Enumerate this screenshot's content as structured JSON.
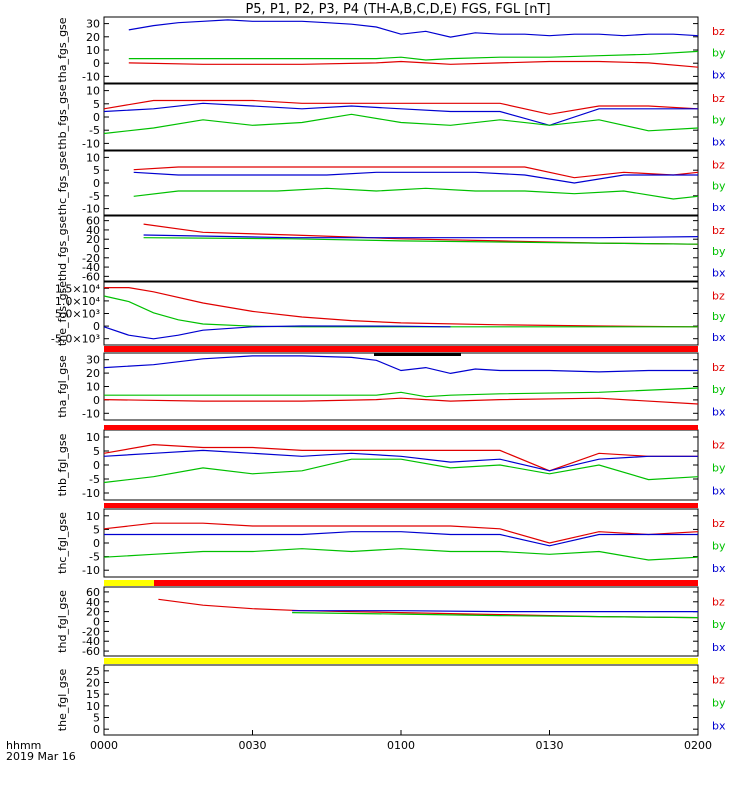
{
  "title": "P5, P1, P2, P3, P4 (TH-A,B,C,D,E) FGS, FGL [nT]",
  "footer": {
    "time_label": "hhmm",
    "date_label": "2019 Mar 16"
  },
  "x_axis": {
    "ticks": [
      "0000",
      "0030",
      "0100",
      "0130",
      "0200"
    ],
    "range_minutes": [
      0,
      120
    ]
  },
  "colors": {
    "bz": "#e00000",
    "by": "#00c000",
    "bx": "#0000d0",
    "flag_red": "#ff0000",
    "flag_yellow": "#ffff00",
    "flag_black": "#000000"
  },
  "chart_data": [
    {
      "type": "line",
      "ylabel": "tha_fgs_gse",
      "ylim": [
        -14,
        32
      ],
      "yticks": [
        "-10",
        "0",
        "10",
        "20",
        "30"
      ],
      "legend": [
        "bz",
        "by",
        "bx"
      ],
      "series": [
        {
          "name": "bx",
          "color": "#0000d0",
          "x": [
            5,
            10,
            15,
            20,
            25,
            30,
            35,
            40,
            45,
            50,
            55,
            60,
            65,
            70,
            75,
            80,
            85,
            90,
            95,
            100,
            105,
            110,
            115,
            120
          ],
          "y": [
            23,
            26,
            28,
            29,
            30,
            29,
            29,
            29,
            28,
            27,
            25,
            20,
            22,
            18,
            21,
            20,
            20,
            19,
            20,
            20,
            19,
            20,
            20,
            19
          ]
        },
        {
          "name": "by",
          "color": "#00c000",
          "x": [
            5,
            20,
            40,
            55,
            60,
            65,
            70,
            80,
            90,
            100,
            110,
            120
          ],
          "y": [
            3,
            3,
            3,
            3,
            4,
            2,
            3,
            4,
            4,
            5,
            6,
            8
          ]
        },
        {
          "name": "bz",
          "color": "#e00000",
          "x": [
            5,
            20,
            40,
            55,
            60,
            65,
            70,
            80,
            90,
            100,
            110,
            120
          ],
          "y": [
            0,
            -1,
            -1,
            0,
            1,
            0,
            -1,
            0,
            1,
            1,
            0,
            -3
          ]
        }
      ]
    },
    {
      "type": "line",
      "ylabel": "thb_fgs_gse",
      "ylim": [
        -12,
        12
      ],
      "yticks": [
        "-10",
        "-5",
        "0",
        "5",
        "10"
      ],
      "legend": [
        "bz",
        "by",
        "bx"
      ],
      "series": [
        {
          "name": "bz",
          "color": "#e00000",
          "x": [
            0,
            10,
            20,
            30,
            40,
            50,
            60,
            70,
            80,
            90,
            100,
            110,
            120
          ],
          "y": [
            3,
            6,
            6,
            6,
            5,
            5,
            5,
            5,
            5,
            1,
            4,
            4,
            3
          ]
        },
        {
          "name": "bx",
          "color": "#0000d0",
          "x": [
            0,
            10,
            20,
            30,
            40,
            50,
            60,
            70,
            80,
            90,
            100,
            110,
            120
          ],
          "y": [
            2,
            3,
            5,
            4,
            3,
            4,
            3,
            2,
            2,
            -3,
            3,
            3,
            3
          ]
        },
        {
          "name": "by",
          "color": "#00c000",
          "x": [
            0,
            10,
            20,
            30,
            40,
            50,
            60,
            70,
            80,
            90,
            100,
            110,
            120
          ],
          "y": [
            -6,
            -4,
            -1,
            -3,
            -2,
            1,
            -2,
            -3,
            -1,
            -3,
            -1,
            -5,
            -4
          ]
        }
      ]
    },
    {
      "type": "line",
      "ylabel": "thc_fgs_gse",
      "ylim": [
        -12,
        12
      ],
      "yticks": [
        "-10",
        "-5",
        "0",
        "5",
        "10"
      ],
      "legend": [
        "bz",
        "by",
        "bx"
      ],
      "series": [
        {
          "name": "bz",
          "color": "#e00000",
          "x": [
            6,
            15,
            25,
            35,
            45,
            55,
            65,
            75,
            85,
            95,
            105,
            115,
            120
          ],
          "y": [
            5,
            6,
            6,
            6,
            6,
            6,
            6,
            6,
            6,
            2,
            4,
            3,
            4
          ]
        },
        {
          "name": "bx",
          "color": "#0000d0",
          "x": [
            6,
            15,
            25,
            35,
            45,
            55,
            65,
            75,
            85,
            95,
            105,
            115,
            120
          ],
          "y": [
            4,
            3,
            3,
            3,
            3,
            4,
            4,
            4,
            3,
            0,
            3,
            3,
            3
          ]
        },
        {
          "name": "by",
          "color": "#00c000",
          "x": [
            6,
            15,
            25,
            35,
            45,
            55,
            65,
            75,
            85,
            95,
            105,
            115,
            120
          ],
          "y": [
            -5,
            -3,
            -3,
            -3,
            -2,
            -3,
            -2,
            -3,
            -3,
            -4,
            -3,
            -6,
            -5
          ]
        }
      ]
    },
    {
      "type": "line",
      "ylabel": "thd_fgs_gse",
      "ylim": [
        -60,
        60
      ],
      "yticks": [
        "-60",
        "-40",
        "-20",
        "0",
        "20",
        "40",
        "60"
      ],
      "legend": [
        "bz",
        "by",
        "bx"
      ],
      "series": [
        {
          "name": "bz",
          "color": "#e00000",
          "x": [
            8,
            20,
            38,
            60,
            80,
            100,
            120
          ],
          "y": [
            45,
            30,
            25,
            18,
            14,
            10,
            8
          ]
        },
        {
          "name": "by",
          "color": "#00c000",
          "x": [
            8,
            38,
            60,
            80,
            100,
            120
          ],
          "y": [
            20,
            18,
            14,
            12,
            10,
            8
          ]
        },
        {
          "name": "bx",
          "color": "#0000d0",
          "x": [
            8,
            38,
            60,
            80,
            100,
            120
          ],
          "y": [
            25,
            20,
            20,
            20,
            20,
            22
          ]
        }
      ]
    },
    {
      "type": "line",
      "ylabel": "the_fgs_gse",
      "ylim": [
        -6500,
        16000
      ],
      "yticks": [
        "-5.0×10³",
        "0",
        "5.0×10³",
        "1.0×10⁴",
        "1.5×10⁴"
      ],
      "legend": [
        "bz",
        "by",
        "bx"
      ],
      "series": [
        {
          "name": "bz",
          "color": "#e00000",
          "x": [
            0,
            5,
            10,
            20,
            30,
            40,
            50,
            60,
            80,
            100,
            120
          ],
          "y": [
            14000,
            14000,
            12500,
            8500,
            5500,
            3500,
            2200,
            1400,
            700,
            300,
            0
          ]
        },
        {
          "name": "by",
          "color": "#00c000",
          "x": [
            0,
            5,
            10,
            15,
            20,
            30,
            40,
            60,
            120
          ],
          "y": [
            11000,
            9000,
            5000,
            2500,
            1000,
            200,
            0,
            0,
            0
          ]
        },
        {
          "name": "bx",
          "color": "#0000d0",
          "x": [
            0,
            5,
            10,
            15,
            20,
            30,
            40,
            60,
            70
          ],
          "y": [
            0,
            -3000,
            -4300,
            -3000,
            -1200,
            0,
            300,
            200,
            0
          ]
        }
      ]
    },
    {
      "type": "line",
      "ylabel": "tha_fgl_gse",
      "ylim": [
        -14,
        32
      ],
      "yticks": [
        "-10",
        "0",
        "10",
        "20",
        "30"
      ],
      "legend": [
        "bz",
        "by",
        "bx"
      ],
      "series": [
        {
          "name": "bx",
          "color": "#0000d0",
          "x": [
            0,
            10,
            20,
            30,
            40,
            50,
            55,
            60,
            65,
            70,
            75,
            80,
            90,
            100,
            110,
            120
          ],
          "y": [
            22,
            24,
            28,
            30,
            30,
            29,
            27,
            20,
            22,
            18,
            21,
            20,
            20,
            19,
            20,
            20
          ]
        },
        {
          "name": "by",
          "color": "#00c000",
          "x": [
            0,
            20,
            40,
            55,
            60,
            65,
            70,
            80,
            100,
            120
          ],
          "y": [
            3,
            3,
            3,
            3,
            5,
            2,
            3,
            4,
            5,
            8
          ]
        },
        {
          "name": "bz",
          "color": "#e00000",
          "x": [
            0,
            20,
            40,
            55,
            60,
            65,
            70,
            80,
            100,
            120
          ],
          "y": [
            0,
            -1,
            -1,
            0,
            1,
            0,
            -1,
            0,
            1,
            -3
          ]
        }
      ]
    },
    {
      "type": "line",
      "ylabel": "thb_fgl_gse",
      "ylim": [
        -12,
        12
      ],
      "yticks": [
        "-10",
        "-5",
        "0",
        "5",
        "10"
      ],
      "legend": [
        "bz",
        "by",
        "bx"
      ],
      "series": [
        {
          "name": "bz",
          "color": "#e00000",
          "x": [
            0,
            10,
            20,
            30,
            40,
            50,
            60,
            70,
            80,
            90,
            100,
            110,
            120
          ],
          "y": [
            4,
            7,
            6,
            6,
            5,
            5,
            5,
            5,
            5,
            -2,
            4,
            3,
            3
          ]
        },
        {
          "name": "bx",
          "color": "#0000d0",
          "x": [
            0,
            10,
            20,
            30,
            40,
            50,
            60,
            70,
            80,
            90,
            100,
            110,
            120
          ],
          "y": [
            3,
            4,
            5,
            4,
            3,
            4,
            3,
            1,
            2,
            -2,
            2,
            3,
            3
          ]
        },
        {
          "name": "by",
          "color": "#00c000",
          "x": [
            0,
            10,
            20,
            30,
            40,
            50,
            60,
            70,
            80,
            90,
            100,
            110,
            120
          ],
          "y": [
            -6,
            -4,
            -1,
            -3,
            -2,
            2,
            2,
            -1,
            0,
            -3,
            0,
            -5,
            -4
          ]
        }
      ]
    },
    {
      "type": "line",
      "ylabel": "thc_fgl_gse",
      "ylim": [
        -12,
        12
      ],
      "yticks": [
        "-10",
        "-5",
        "0",
        "5",
        "10"
      ],
      "legend": [
        "bz",
        "by",
        "bx"
      ],
      "series": [
        {
          "name": "bz",
          "color": "#e00000",
          "x": [
            0,
            10,
            20,
            30,
            40,
            50,
            60,
            70,
            80,
            90,
            100,
            110,
            120
          ],
          "y": [
            5,
            7,
            7,
            6,
            6,
            6,
            6,
            6,
            5,
            0,
            4,
            3,
            4
          ]
        },
        {
          "name": "bx",
          "color": "#0000d0",
          "x": [
            0,
            10,
            20,
            30,
            40,
            50,
            60,
            70,
            80,
            90,
            100,
            110,
            120
          ],
          "y": [
            3,
            3,
            3,
            3,
            3,
            4,
            4,
            3,
            3,
            -1,
            3,
            3,
            3
          ]
        },
        {
          "name": "by",
          "color": "#00c000",
          "x": [
            0,
            10,
            20,
            30,
            40,
            50,
            60,
            70,
            80,
            90,
            100,
            110,
            120
          ],
          "y": [
            -5,
            -4,
            -3,
            -3,
            -2,
            -3,
            -2,
            -3,
            -3,
            -4,
            -3,
            -6,
            -5
          ]
        }
      ]
    },
    {
      "type": "line",
      "ylabel": "thd_fgl_gse",
      "ylim": [
        -70,
        70
      ],
      "yticks": [
        "-60",
        "-40",
        "-20",
        "0",
        "20",
        "40",
        "60"
      ],
      "legend": [
        "bz",
        "by",
        "bx"
      ],
      "series": [
        {
          "name": "bz",
          "color": "#e00000",
          "x": [
            11,
            20,
            30,
            40,
            60,
            80,
            100,
            120
          ],
          "y": [
            45,
            33,
            26,
            22,
            18,
            14,
            10,
            8
          ]
        },
        {
          "name": "by",
          "color": "#00c000",
          "x": [
            38,
            60,
            80,
            100,
            120
          ],
          "y": [
            18,
            15,
            12,
            10,
            8
          ]
        },
        {
          "name": "bx",
          "color": "#0000d0",
          "x": [
            38,
            60,
            80,
            100,
            120
          ],
          "y": [
            22,
            22,
            20,
            20,
            20
          ]
        }
      ]
    },
    {
      "type": "line",
      "ylabel": "the_fgl_gse",
      "ylim": [
        0,
        28
      ],
      "yticks": [
        "0",
        "5",
        "10",
        "15",
        "20",
        "25"
      ],
      "legend": [
        "bz",
        "by",
        "bx"
      ],
      "series": []
    }
  ]
}
